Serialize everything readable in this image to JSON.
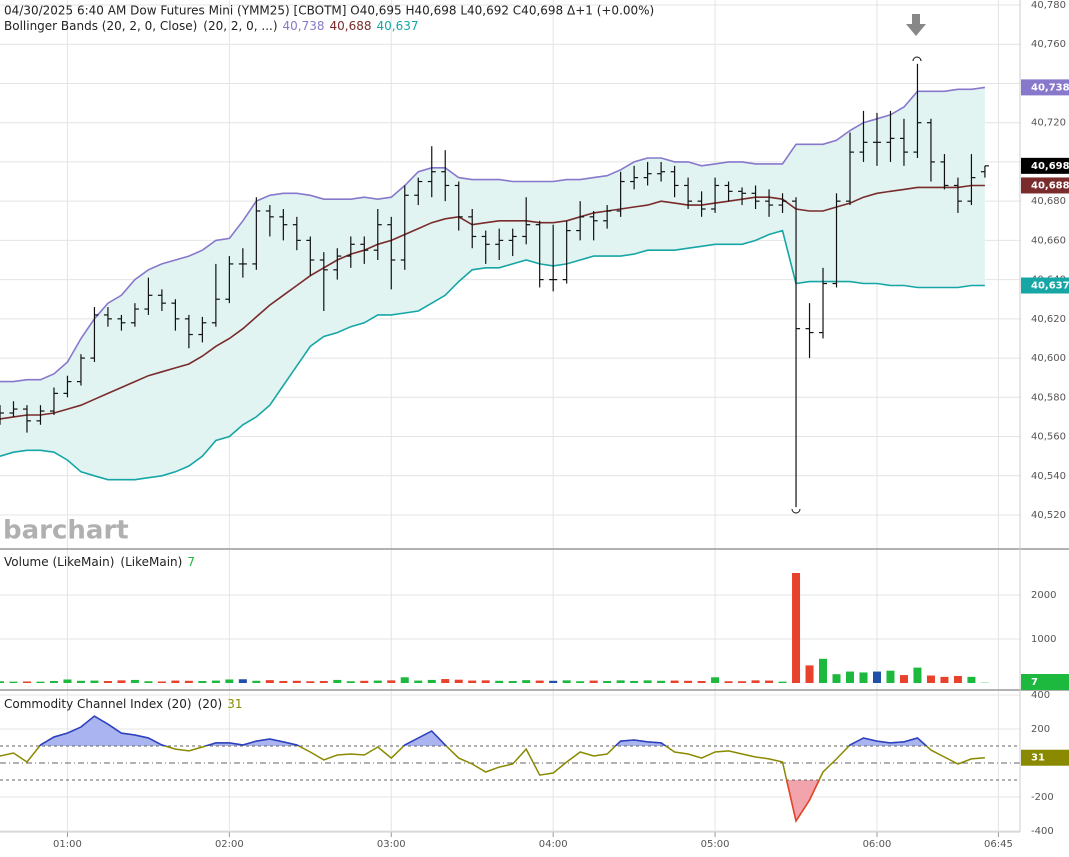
{
  "chart_data": {
    "type": "ohlc",
    "header": "04/30/2025  6:40 AM Dow Futures Mini (YMM25) [CBOTM] O40,695 H40,698 L40,692 C40,698 Δ+1 (+0.00%)",
    "watermark": "barchart",
    "x": [
      "00:35",
      "00:40",
      "00:45",
      "00:50",
      "00:55",
      "01:00",
      "01:05",
      "01:10",
      "01:15",
      "01:20",
      "01:25",
      "01:30",
      "01:35",
      "01:40",
      "01:45",
      "01:50",
      "01:55",
      "02:00",
      "02:05",
      "02:10",
      "02:15",
      "02:20",
      "02:25",
      "02:30",
      "02:35",
      "02:40",
      "02:45",
      "02:50",
      "02:55",
      "03:00",
      "03:05",
      "03:10",
      "03:15",
      "03:20",
      "03:25",
      "03:30",
      "03:35",
      "03:40",
      "03:45",
      "03:50",
      "03:55",
      "04:00",
      "04:05",
      "04:10",
      "04:15",
      "04:20",
      "04:25",
      "04:30",
      "04:35",
      "04:40",
      "04:45",
      "04:50",
      "04:55",
      "05:00",
      "05:05",
      "05:10",
      "05:15",
      "05:20",
      "05:25",
      "05:30",
      "05:35",
      "05:40",
      "05:45",
      "05:50",
      "05:55",
      "06:00",
      "06:05",
      "06:10",
      "06:15",
      "06:20",
      "06:25",
      "06:30",
      "06:35",
      "06:40"
    ],
    "xlim": [
      "00:35",
      "06:53"
    ],
    "xticks": [
      "01:00",
      "02:00",
      "03:00",
      "04:00",
      "05:00",
      "06:00",
      "06:45"
    ],
    "ohlc": [
      [
        40570,
        40576,
        40566,
        40572
      ],
      [
        40572,
        40578,
        40570,
        40574
      ],
      [
        40574,
        40576,
        40562,
        40568
      ],
      [
        40568,
        40576,
        40566,
        40573
      ],
      [
        40573,
        40585,
        40571,
        40582
      ],
      [
        40582,
        40591,
        40580,
        40588
      ],
      [
        40588,
        40602,
        40586,
        40600
      ],
      [
        40600,
        40626,
        40598,
        40622
      ],
      [
        40622,
        40626,
        40616,
        40620
      ],
      [
        40620,
        40622,
        40614,
        40618
      ],
      [
        40618,
        40628,
        40616,
        40625
      ],
      [
        40625,
        40641,
        40622,
        40632
      ],
      [
        40632,
        40635,
        40624,
        40628
      ],
      [
        40628,
        40630,
        40614,
        40620
      ],
      [
        40620,
        40622,
        40605,
        40612
      ],
      [
        40612,
        40621,
        40608,
        40618
      ],
      [
        40618,
        40648,
        40616,
        40630
      ],
      [
        40630,
        40652,
        40628,
        40648
      ],
      [
        40648,
        40656,
        40641,
        40648
      ],
      [
        40648,
        40682,
        40645,
        40675
      ],
      [
        40675,
        40678,
        40662,
        40672
      ],
      [
        40672,
        40676,
        40660,
        40668
      ],
      [
        40668,
        40672,
        40655,
        40660
      ],
      [
        40660,
        40662,
        40642,
        40650
      ],
      [
        40650,
        40654,
        40624,
        40645
      ],
      [
        40645,
        40656,
        40640,
        40652
      ],
      [
        40652,
        40662,
        40646,
        40658
      ],
      [
        40658,
        40662,
        40648,
        40655
      ],
      [
        40655,
        40676,
        40650,
        40668
      ],
      [
        40668,
        40672,
        40635,
        40650
      ],
      [
        40650,
        40688,
        40645,
        40683
      ],
      [
        40683,
        40692,
        40678,
        40690
      ],
      [
        40690,
        40708,
        40682,
        40695
      ],
      [
        40695,
        40706,
        40680,
        40688
      ],
      [
        40688,
        40690,
        40665,
        40672
      ],
      [
        40672,
        40676,
        40656,
        40662
      ],
      [
        40662,
        40665,
        40648,
        40658
      ],
      [
        40658,
        40666,
        40650,
        40660
      ],
      [
        40660,
        40666,
        40652,
        40662
      ],
      [
        40662,
        40682,
        40658,
        40668
      ],
      [
        40668,
        40670,
        40636,
        40640
      ],
      [
        40640,
        40668,
        40634,
        40640
      ],
      [
        40640,
        40670,
        40638,
        40665
      ],
      [
        40665,
        40680,
        40660,
        40672
      ],
      [
        40672,
        40675,
        40660,
        40670
      ],
      [
        40670,
        40678,
        40666,
        40675
      ],
      [
        40675,
        40695,
        40672,
        40690
      ],
      [
        40690,
        40698,
        40686,
        40692
      ],
      [
        40692,
        40700,
        40688,
        40694
      ],
      [
        40694,
        40700,
        40690,
        40695
      ],
      [
        40695,
        40698,
        40682,
        40688
      ],
      [
        40688,
        40692,
        40676,
        40680
      ],
      [
        40680,
        40685,
        40672,
        40676
      ],
      [
        40676,
        40692,
        40674,
        40688
      ],
      [
        40688,
        40690,
        40680,
        40685
      ],
      [
        40685,
        40687,
        40678,
        40684
      ],
      [
        40684,
        40688,
        40676,
        40680
      ],
      [
        40680,
        40686,
        40672,
        40678
      ],
      [
        40678,
        40684,
        40674,
        40680
      ],
      [
        40680,
        40682,
        40524,
        40615
      ],
      [
        40615,
        40628,
        40600,
        40613
      ],
      [
        40613,
        40646,
        40610,
        40638
      ],
      [
        40638,
        40684,
        40636,
        40680
      ],
      [
        40680,
        40715,
        40678,
        40705
      ],
      [
        40705,
        40726,
        40700,
        40710
      ],
      [
        40710,
        40725,
        40698,
        40710
      ],
      [
        40710,
        40726,
        40700,
        40712
      ],
      [
        40712,
        40722,
        40698,
        40705
      ],
      [
        40705,
        40750,
        40702,
        40720
      ],
      [
        40720,
        40722,
        40690,
        40700
      ],
      [
        40700,
        40704,
        40686,
        40688
      ],
      [
        40688,
        40692,
        40674,
        40680
      ],
      [
        40680,
        40704,
        40678,
        40692
      ],
      [
        40695,
        40698,
        40692,
        40698
      ]
    ],
    "bar_color": "#111111",
    "last_price_label": "40,698",
    "ylim": [
      40520,
      40780
    ],
    "yticks": [
      {
        "value": 40520,
        "label": "40,520"
      },
      {
        "value": 40540,
        "label": "40,540"
      },
      {
        "value": 40560,
        "label": "40,560"
      },
      {
        "value": 40580,
        "label": "40,580"
      },
      {
        "value": 40600,
        "label": "40,600"
      },
      {
        "value": 40620,
        "label": "40,620"
      },
      {
        "value": 40640,
        "label": "40,640"
      },
      {
        "value": 40660,
        "label": "40,660"
      },
      {
        "value": 40680,
        "label": "40,680"
      },
      {
        "value": 40700,
        "label": "40,700"
      },
      {
        "value": 40720,
        "label": "40,720"
      },
      {
        "value": 40740,
        "label": "40,740"
      },
      {
        "value": 40760,
        "label": "40,760"
      },
      {
        "value": 40780,
        "label": "40,780"
      }
    ],
    "grid": true,
    "up_color": "#1db83e",
    "down_color": "#e8412c",
    "flat_color": "#1f4fa8",
    "bands": {
      "title": "Bollinger Bands (20, 2, 0, Close)",
      "params": "(20, 2, 0, ...)",
      "fill": "#e1f4f2",
      "series": [
        {
          "color": "#8878cc",
          "last_label": "40,738",
          "values": [
            40588,
            40588,
            40589,
            40589,
            40592,
            40598,
            40610,
            40620,
            40628,
            40632,
            40640,
            40645,
            40648,
            40650,
            40652,
            40655,
            40660,
            40661,
            40670,
            40680,
            40683,
            40684,
            40684,
            40683,
            40681,
            40681,
            40681,
            40682,
            40681,
            40682,
            40688,
            40695,
            40697,
            40697,
            40692,
            40691,
            40691,
            40691,
            40690,
            40690,
            40690,
            40690,
            40691,
            40691,
            40692,
            40693,
            40696,
            40700,
            40702,
            40702,
            40700,
            40700,
            40698,
            40699,
            40700,
            40700,
            40699,
            40699,
            40699,
            40709,
            40709,
            40709,
            40711,
            40716,
            40720,
            40722,
            40724,
            40728,
            40736,
            40736,
            40736,
            40737,
            40737,
            40738
          ]
        },
        {
          "color": "#7a2b2b",
          "last_label": "40,688",
          "values": [
            40569,
            40570,
            40571,
            40571,
            40572,
            40574,
            40576,
            40579,
            40582,
            40585,
            40588,
            40591,
            40593,
            40595,
            40597,
            40601,
            40606,
            40610,
            40615,
            40621,
            40627,
            40632,
            40637,
            40642,
            40646,
            40650,
            40653,
            40655,
            40658,
            40660,
            40663,
            40666,
            40669,
            40671,
            40672,
            40668,
            40669,
            40670,
            40670,
            40670,
            40669,
            40669,
            40670,
            40672,
            40674,
            40675,
            40676,
            40677,
            40678,
            40680,
            40679,
            40678,
            40678,
            40679,
            40680,
            40681,
            40682,
            40682,
            40681,
            40676,
            40675,
            40675,
            40677,
            40679,
            40682,
            40684,
            40685,
            40686,
            40687,
            40687,
            40687,
            40687,
            40688,
            40688
          ]
        },
        {
          "color": "#17a6a6",
          "last_label": "40,637",
          "values": [
            40550,
            40552,
            40553,
            40553,
            40552,
            40548,
            40542,
            40540,
            40538,
            40538,
            40538,
            40539,
            40540,
            40542,
            40545,
            40550,
            40558,
            40560,
            40566,
            40570,
            40576,
            40586,
            40596,
            40606,
            40611,
            40613,
            40616,
            40618,
            40622,
            40622,
            40623,
            40624,
            40628,
            40632,
            40639,
            40645,
            40646,
            40646,
            40648,
            40650,
            40648,
            40647,
            40648,
            40650,
            40652,
            40652,
            40652,
            40653,
            40655,
            40655,
            40655,
            40656,
            40657,
            40658,
            40658,
            40658,
            40660,
            40663,
            40665,
            40638,
            40639,
            40639,
            40639,
            40639,
            40638,
            40638,
            40637,
            40637,
            40636,
            40636,
            40636,
            40636,
            40637,
            40637
          ]
        }
      ]
    },
    "volume": {
      "title": "Volume (LikeMain)",
      "params": "(LikeMain)",
      "last_label": "7",
      "ylim": [
        0,
        3000
      ],
      "yticks": [
        1000,
        2000
      ],
      "values": [
        40,
        30,
        35,
        30,
        45,
        80,
        50,
        55,
        45,
        60,
        70,
        40,
        35,
        55,
        50,
        45,
        55,
        80,
        85,
        50,
        65,
        45,
        50,
        40,
        45,
        70,
        40,
        50,
        55,
        60,
        130,
        55,
        70,
        90,
        75,
        55,
        60,
        50,
        45,
        65,
        55,
        50,
        60,
        40,
        55,
        45,
        60,
        45,
        60,
        50,
        55,
        50,
        45,
        130,
        40,
        40,
        60,
        55,
        30,
        2500,
        400,
        550,
        200,
        260,
        240,
        260,
        280,
        180,
        350,
        170,
        140,
        160,
        140,
        7
      ]
    },
    "cci": {
      "title": "Commodity Channel Index (20)",
      "params": "(20)",
      "last_label": "31",
      "ylim": [
        -400,
        400
      ],
      "yticks": [
        400,
        200,
        -200,
        -400
      ],
      "levels": [
        100,
        0,
        -100
      ],
      "line_color": "#8a8a00",
      "above_color": "#2a3fd0",
      "above_fill": "#aab4f0",
      "below_fill": "#f2a3ab",
      "values": [
        41,
        59,
        6,
        106,
        153,
        176,
        212,
        276,
        229,
        176,
        165,
        147,
        106,
        82,
        71,
        94,
        118,
        118,
        106,
        129,
        141,
        124,
        106,
        65,
        18,
        47,
        53,
        47,
        94,
        29,
        106,
        147,
        188,
        106,
        29,
        -6,
        -53,
        -24,
        -6,
        82,
        -71,
        -59,
        6,
        65,
        41,
        53,
        129,
        135,
        124,
        118,
        65,
        53,
        29,
        65,
        71,
        53,
        35,
        24,
        6,
        -341,
        -218,
        -53,
        24,
        106,
        147,
        129,
        118,
        124,
        147,
        76,
        35,
        -6,
        24,
        31
      ]
    }
  }
}
